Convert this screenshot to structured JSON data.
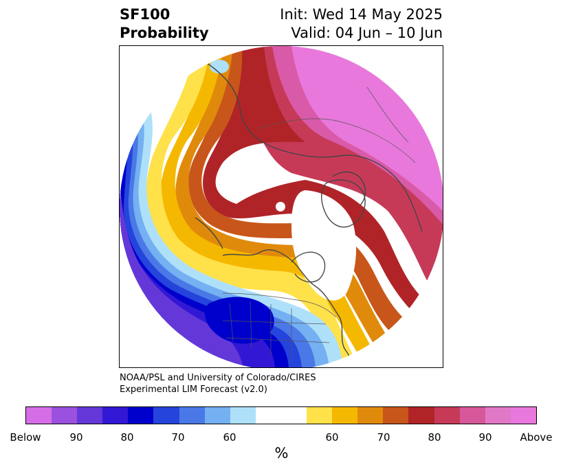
{
  "header": {
    "title_line1": "SF100",
    "title_line2": "Probability",
    "init_label": "Init: Wed 14 May 2025",
    "valid_label": "Valid: 04 Jun – 10 Jun"
  },
  "credit": {
    "line1": "NOAA/PSL and University of Colorado/CIRES",
    "line2": "Experimental LIM Forecast (v2.0)"
  },
  "colorbar": {
    "colors": [
      "#d56ee6",
      "#9b50df",
      "#6438d8",
      "#3218d5",
      "#0000cc",
      "#2444dc",
      "#4a78e6",
      "#74b0f2",
      "#aee0fa",
      "#ffffff",
      "#ffffff",
      "#ffe14a",
      "#f5b800",
      "#e08a0c",
      "#c8561a",
      "#b02428",
      "#c63a58",
      "#d6589a",
      "#e078c6",
      "#e878dc"
    ],
    "tick_labels": [
      "Below",
      "90",
      "80",
      "70",
      "60",
      "60",
      "70",
      "80",
      "90",
      "Above"
    ],
    "unit": "%"
  },
  "map": {
    "colors": {
      "above_pink": "#e878dc",
      "above_pink2": "#d95aa8",
      "magenta_red": "#c63a58",
      "dark_red": "#b02428",
      "orange_red": "#c8561a",
      "orange": "#e08a0c",
      "gold": "#f5b800",
      "yellow": "#ffe14a",
      "neutral": "#ffffff",
      "light_blue": "#aee0fa",
      "sky_blue": "#74b0f2",
      "mid_blue": "#4a78e6",
      "royal_blue": "#2444dc",
      "navy": "#0000cc",
      "indigo": "#3218d5",
      "violet": "#6438d8",
      "coastline": "#444444"
    }
  }
}
